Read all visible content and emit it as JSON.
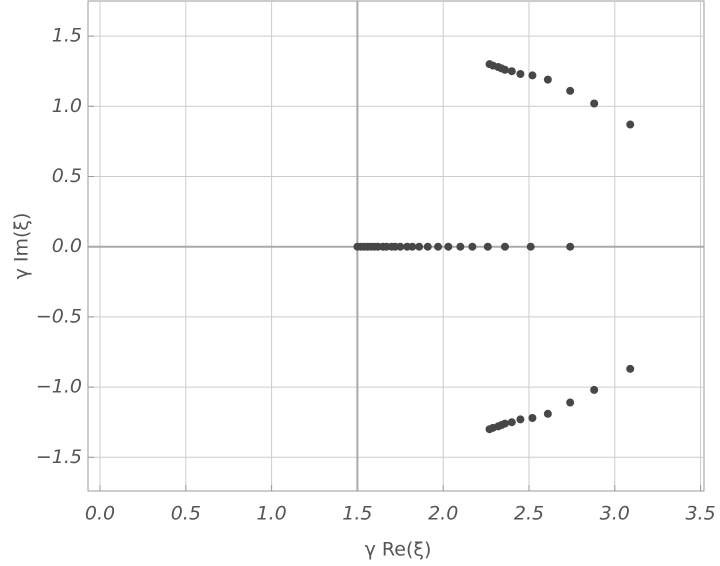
{
  "chart_data": {
    "type": "scatter",
    "x_label": "γ Re(ξ)",
    "y_label": "γ Im(ξ)",
    "x": [
      1.5,
      1.52,
      1.54,
      1.56,
      1.58,
      1.6,
      1.62,
      1.65,
      1.67,
      1.7,
      1.72,
      1.75,
      1.79,
      1.82,
      1.86,
      1.91,
      1.97,
      2.03,
      2.1,
      2.17,
      2.26,
      2.36,
      2.51,
      2.74,
      2.27,
      2.29,
      2.32,
      2.34,
      2.36,
      2.4,
      2.45,
      2.52,
      2.61,
      2.74,
      2.88,
      3.09,
      2.27,
      2.29,
      2.32,
      2.34,
      2.36,
      2.4,
      2.45,
      2.52,
      2.61,
      2.74,
      2.88,
      3.09
    ],
    "values": [
      0,
      0,
      0,
      0,
      0,
      0,
      0,
      0,
      0,
      0,
      0,
      0,
      0,
      0,
      0,
      0,
      0,
      0,
      0,
      0,
      0,
      0,
      0,
      0,
      1.3,
      1.29,
      1.28,
      1.27,
      1.26,
      1.25,
      1.23,
      1.22,
      1.19,
      1.11,
      1.02,
      0.87,
      -1.3,
      -1.29,
      -1.28,
      -1.27,
      -1.26,
      -1.25,
      -1.23,
      -1.22,
      -1.19,
      -1.11,
      -1.02,
      -0.87
    ],
    "color": "#474747",
    "xlim": [
      -0.07,
      3.52
    ],
    "ylim": [
      -1.74,
      1.75
    ],
    "xticks": [
      {
        "value": 0,
        "label": "0.0"
      },
      0.5,
      {
        "value": 1,
        "label": "1.0"
      },
      1.5,
      {
        "value": 2,
        "label": "2.0"
      },
      2.5,
      {
        "value": 3,
        "label": "3.0"
      },
      3.5
    ],
    "yticks": [
      {
        "value": -1.5,
        "label": "−1.5"
      },
      {
        "value": -1,
        "label": "−1.0"
      },
      {
        "value": -0.5,
        "label": "−0.5"
      },
      {
        "value": 0,
        "label": "0.0"
      },
      0.5,
      {
        "value": 1,
        "label": "1.0"
      },
      1.5
    ],
    "axes_origin": [
      1.5,
      0
    ],
    "grid": true
  }
}
